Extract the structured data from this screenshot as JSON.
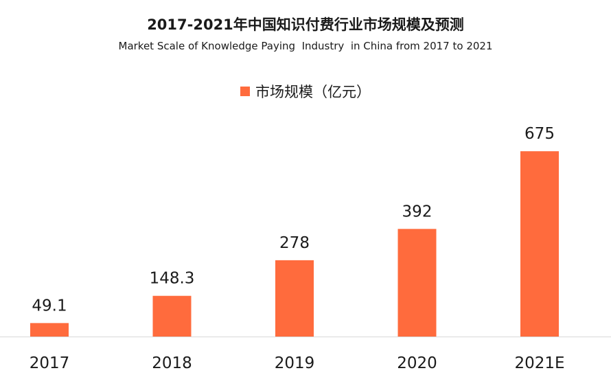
{
  "title": "2017-2021年中国知识付费行业市场规模及预测",
  "subtitle": "Market Scale of Knowledge Paying  Industry  in China from 2017 to 2021",
  "colors": {
    "bar": "#FF6B3D",
    "axis": "#d9d9d9"
  },
  "chart_data": {
    "type": "bar",
    "title": "2017-2021年中国知识付费行业市场规模及预测",
    "subtitle": "Market Scale of Knowledge Paying  Industry  in China from 2017 to 2021",
    "categories": [
      "2017",
      "2018",
      "2019",
      "2020",
      "2021E"
    ],
    "series": [
      {
        "name": "市场规模（亿元）",
        "values": [
          49.1,
          148.3,
          278,
          392,
          675
        ],
        "labels": [
          "49.1",
          "148.3",
          "278",
          "392",
          "675"
        ]
      }
    ],
    "xlabel": "",
    "ylabel": "",
    "ylim": [
      0,
      738
    ],
    "grid": false,
    "legend_position": "top-center"
  }
}
